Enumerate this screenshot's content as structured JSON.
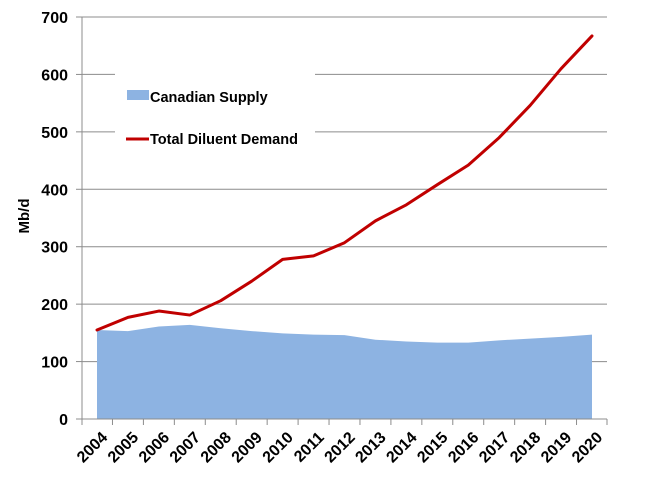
{
  "chart_data": {
    "type": "area",
    "ylabel": "Mb/d",
    "xlabel": "",
    "ylim": [
      0,
      700
    ],
    "yticks": [
      0,
      100,
      200,
      300,
      400,
      500,
      600,
      700
    ],
    "grid": "horizontal",
    "legend_position": "top-left",
    "categories": [
      "2004",
      "2005",
      "2006",
      "2007",
      "2008",
      "2009",
      "2010",
      "2011",
      "2012",
      "2013",
      "2014",
      "2015",
      "2016",
      "2017",
      "2018",
      "2019",
      "2020"
    ],
    "series": [
      {
        "name": "Canadian Supply",
        "type": "area",
        "color": "#8db3e2",
        "values": [
          155,
          153,
          161,
          164,
          158,
          153,
          149,
          147,
          146,
          138,
          135,
          133,
          133,
          137,
          140,
          143,
          147
        ]
      },
      {
        "name": "Total Diluent Demand",
        "type": "line",
        "color": "#c00000",
        "values": [
          155,
          177,
          188,
          181,
          206,
          240,
          278,
          284,
          307,
          345,
          373,
          408,
          442,
          490,
          546,
          610,
          667
        ]
      }
    ]
  }
}
